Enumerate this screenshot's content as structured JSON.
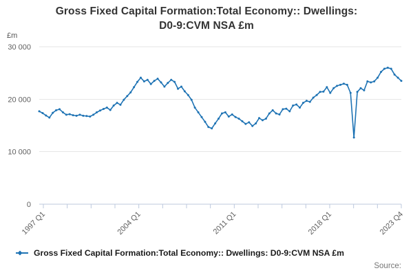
{
  "title": {
    "line1": "Gross Fixed Capital Formation:Total Economy:: Dwellings:",
    "line2": "D0-9:CVM NSA £m"
  },
  "y_axis": {
    "unit": "£m",
    "tick_values": [
      0,
      10000,
      20000,
      30000
    ],
    "tick_labels": [
      "0",
      "10 000",
      "20 000",
      "30 000"
    ],
    "min": 0,
    "max": 30000
  },
  "x_axis": {
    "tick_labels": [
      "1997 Q1",
      "2004 Q1",
      "2011 Q1",
      "2018 Q1",
      "2023 Q4"
    ],
    "labeled_tick_indices": [
      0,
      4,
      8,
      12,
      15
    ],
    "total_ticks": 16
  },
  "legend": {
    "label": "Gross Fixed Capital Formation:Total Economy:: Dwellings: D0-9:CVM NSA £m"
  },
  "source": {
    "label": "Source:"
  },
  "colors": {
    "line": "#1e73b4",
    "grid": "#e6e6e6",
    "axis": "#bcc8dd",
    "tick_text": "#5f5f5f",
    "title_text": "#333333",
    "legend_text": "#1a1a1a",
    "source_text": "#757575"
  },
  "chart_data": {
    "type": "line",
    "title": "Gross Fixed Capital Formation:Total Economy:: Dwellings: D0-9:CVM NSA £m",
    "ylabel": "£m",
    "ylim": [
      0,
      30000
    ],
    "x_start": "1997 Q1",
    "x_end": "2023 Q4",
    "frequency": "quarterly",
    "legend_position": "bottom-left",
    "grid": "horizontal-only",
    "markers": true,
    "values": [
      17700,
      17350,
      16900,
      16500,
      17400,
      17900,
      18100,
      17500,
      17050,
      17150,
      16950,
      16850,
      17050,
      16850,
      16800,
      16700,
      17050,
      17500,
      17850,
      18150,
      18400,
      17950,
      18800,
      19300,
      18950,
      19900,
      20600,
      21300,
      22300,
      23300,
      24100,
      23400,
      23700,
      22900,
      23500,
      23900,
      23200,
      22400,
      23100,
      23700,
      23300,
      22000,
      22400,
      21500,
      20800,
      19900,
      18400,
      17500,
      16600,
      15700,
      14700,
      14450,
      15400,
      16300,
      17300,
      17500,
      16700,
      17100,
      16600,
      16300,
      15800,
      15300,
      15600,
      14900,
      15400,
      16400,
      16000,
      16300,
      17300,
      17900,
      17300,
      17100,
      18100,
      18200,
      17700,
      18800,
      19000,
      18400,
      19300,
      19700,
      19500,
      20300,
      20800,
      21400,
      21450,
      22300,
      21200,
      22100,
      22550,
      22750,
      22950,
      22750,
      21200,
      12700,
      21400,
      22100,
      21700,
      23400,
      23200,
      23400,
      24100,
      25200,
      25800,
      26000,
      25800,
      24700,
      24100,
      23500
    ]
  }
}
